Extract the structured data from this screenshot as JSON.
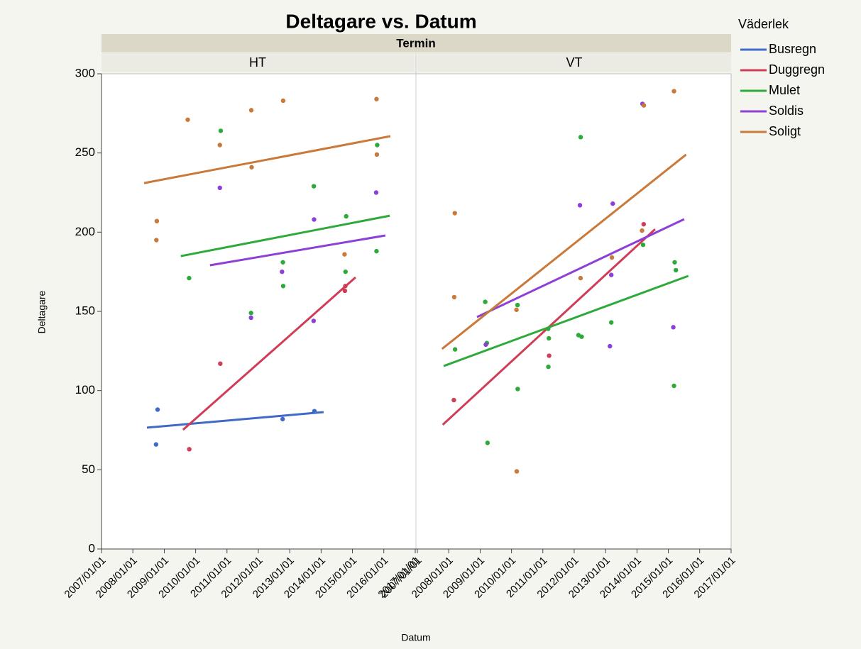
{
  "chart_data": [
    {
      "type": "scatter",
      "facet": "HT",
      "title": "Deltagare vs. Datum",
      "facet_title": "Termin",
      "legend_title": "Väderlek",
      "xlabel": "Datum",
      "ylabel": "Deltagare",
      "xlim": [
        "2007-01-01",
        "2017-01-01"
      ],
      "xticks": [
        {
          "value": "2007-01-01",
          "label": "2007/01/01"
        },
        {
          "value": "2008-01-01",
          "label": "2008/01/01"
        },
        {
          "value": "2009-01-01",
          "label": "2009/01/01"
        },
        {
          "value": "2010-01-01",
          "label": "2010/01/01"
        },
        {
          "value": "2011-01-01",
          "label": "2011/01/01"
        },
        {
          "value": "2012-01-01",
          "label": "2012/01/01"
        },
        {
          "value": "2013-01-01",
          "label": "2013/01/01"
        },
        {
          "value": "2014-01-01",
          "label": "2014/01/01"
        },
        {
          "value": "2015-01-01",
          "label": "2015/01/01"
        },
        {
          "value": "2016-01-01",
          "label": "2016/01/01"
        },
        {
          "value": "2017-01-01",
          "label": "2017/01/01"
        }
      ],
      "ylim": [
        0,
        300
      ],
      "yticks": [
        0,
        50,
        100,
        150,
        200,
        250,
        300
      ],
      "series": [
        {
          "name": "Busregn",
          "color": "#4169c8",
          "x": [
            "2008-09-27",
            "2008-10-15",
            "2012-10-10",
            "2013-10-15"
          ],
          "values": [
            66,
            88,
            82,
            87
          ],
          "trend": {
            "x": [
              "2008-06-13",
              "2014-01-30"
            ],
            "values": [
              76.6,
              86.4
            ]
          }
        },
        {
          "name": "Duggregn",
          "color": "#cf3d56",
          "x": [
            "2009-10-19",
            "2010-10-15",
            "2014-10-10",
            "2014-10-05"
          ],
          "values": [
            63,
            117,
            166,
            163
          ],
          "trend": {
            "x": [
              "2009-08-07",
              "2015-02-06"
            ],
            "values": [
              75.2,
              171.5
            ]
          }
        },
        {
          "name": "Mulet",
          "color": "#2eaa3b",
          "x": [
            "2009-10-17",
            "2010-10-20",
            "2011-10-08",
            "2012-10-13",
            "2012-10-16",
            "2013-10-08",
            "2014-10-20",
            "2014-10-12",
            "2015-10-16",
            "2015-10-08"
          ],
          "values": [
            171,
            264,
            149,
            181,
            166,
            229,
            210,
            175,
            255,
            188
          ],
          "trend": {
            "x": [
              "2009-07-12",
              "2016-03-10"
            ],
            "values": [
              184.9,
              210.4
            ]
          }
        },
        {
          "name": "Soldis",
          "color": "#8d3fd6",
          "x": [
            "2010-10-10",
            "2011-10-08",
            "2012-10-03",
            "2013-10-11",
            "2013-10-06",
            "2015-10-04"
          ],
          "values": [
            228,
            146,
            175,
            208,
            144,
            225
          ],
          "trend": {
            "x": [
              "2010-06-17",
              "2016-01-19"
            ],
            "values": [
              179.1,
              197.9
            ]
          }
        },
        {
          "name": "Soligt",
          "color": "#c97a3a",
          "x": [
            "2008-10-01",
            "2008-10-06",
            "2009-10-01",
            "2010-10-10",
            "2011-10-11",
            "2011-10-15",
            "2012-10-16",
            "2014-10-01",
            "2015-10-08",
            "2015-10-12"
          ],
          "values": [
            195,
            207,
            271,
            255,
            277,
            241,
            283,
            186,
            284,
            249
          ],
          "trend": {
            "x": [
              "2008-05-11",
              "2016-03-17"
            ],
            "values": [
              231,
              260.6
            ]
          }
        }
      ]
    },
    {
      "type": "scatter",
      "facet": "VT",
      "xlim": [
        "2007-01-01",
        "2017-01-01"
      ],
      "xticks": [
        {
          "value": "2007-01-01",
          "label": "2007/01/01"
        },
        {
          "value": "2008-01-01",
          "label": "2008/01/01"
        },
        {
          "value": "2009-01-01",
          "label": "2009/01/01"
        },
        {
          "value": "2010-01-01",
          "label": "2010/01/01"
        },
        {
          "value": "2011-01-01",
          "label": "2011/01/01"
        },
        {
          "value": "2012-01-01",
          "label": "2012/01/01"
        },
        {
          "value": "2013-01-01",
          "label": "2013/01/01"
        },
        {
          "value": "2014-01-01",
          "label": "2014/01/01"
        },
        {
          "value": "2015-01-01",
          "label": "2015/01/01"
        },
        {
          "value": "2016-01-01",
          "label": "2016/01/01"
        },
        {
          "value": "2017-01-01",
          "label": "2017/01/01"
        }
      ],
      "ylim": [
        0,
        300
      ],
      "series": [
        {
          "name": "Duggregn",
          "color": "#cf3d56",
          "x": [
            "2008-03-01",
            "2011-03-15",
            "2014-03-20"
          ],
          "values": [
            94,
            122,
            205
          ],
          "trend": {
            "x": [
              "2007-10-23",
              "2014-07-31"
            ],
            "values": [
              78.4,
              201.9
            ]
          }
        },
        {
          "name": "Mulet",
          "color": "#2eaa3b",
          "x": [
            "2008-03-15",
            "2009-03-01",
            "2009-03-20",
            "2009-03-28",
            "2010-03-12",
            "2010-03-14",
            "2011-03-04",
            "2011-03-12",
            "2011-03-06",
            "2012-03-16",
            "2012-02-20",
            "2012-03-28",
            "2013-03-08",
            "2014-03-13",
            "2015-03-16",
            "2015-03-08",
            "2015-03-30"
          ],
          "values": [
            126,
            156,
            130,
            67,
            154,
            101,
            139,
            133,
            115,
            260,
            135,
            134,
            143,
            192,
            181,
            103,
            176
          ],
          "trend": {
            "x": [
              "2007-11-03",
              "2015-08-22"
            ],
            "values": [
              115.5,
              172.4
            ]
          }
        },
        {
          "name": "Soldis",
          "color": "#8d3fd6",
          "x": [
            "2009-03-08",
            "2012-03-08",
            "2013-03-25",
            "2013-03-08",
            "2013-02-20",
            "2014-03-06",
            "2015-02-28"
          ],
          "values": [
            129,
            217,
            218,
            173,
            128,
            281,
            140
          ],
          "trend": {
            "x": [
              "2008-11-25",
              "2015-07-05"
            ],
            "values": [
              146.4,
              208.2
            ]
          }
        },
        {
          "name": "Soligt",
          "color": "#c97a3a",
          "x": [
            "2008-03-12",
            "2008-03-05",
            "2010-02-28",
            "2010-03-03",
            "2012-03-15",
            "2013-03-15",
            "2014-03-22",
            "2014-03-01",
            "2015-03-08"
          ],
          "values": [
            212,
            159,
            151,
            49,
            171,
            184,
            280,
            201,
            289
          ],
          "trend": {
            "x": [
              "2007-10-15",
              "2015-07-27"
            ],
            "values": [
              126.3,
              249
            ]
          }
        }
      ]
    }
  ]
}
